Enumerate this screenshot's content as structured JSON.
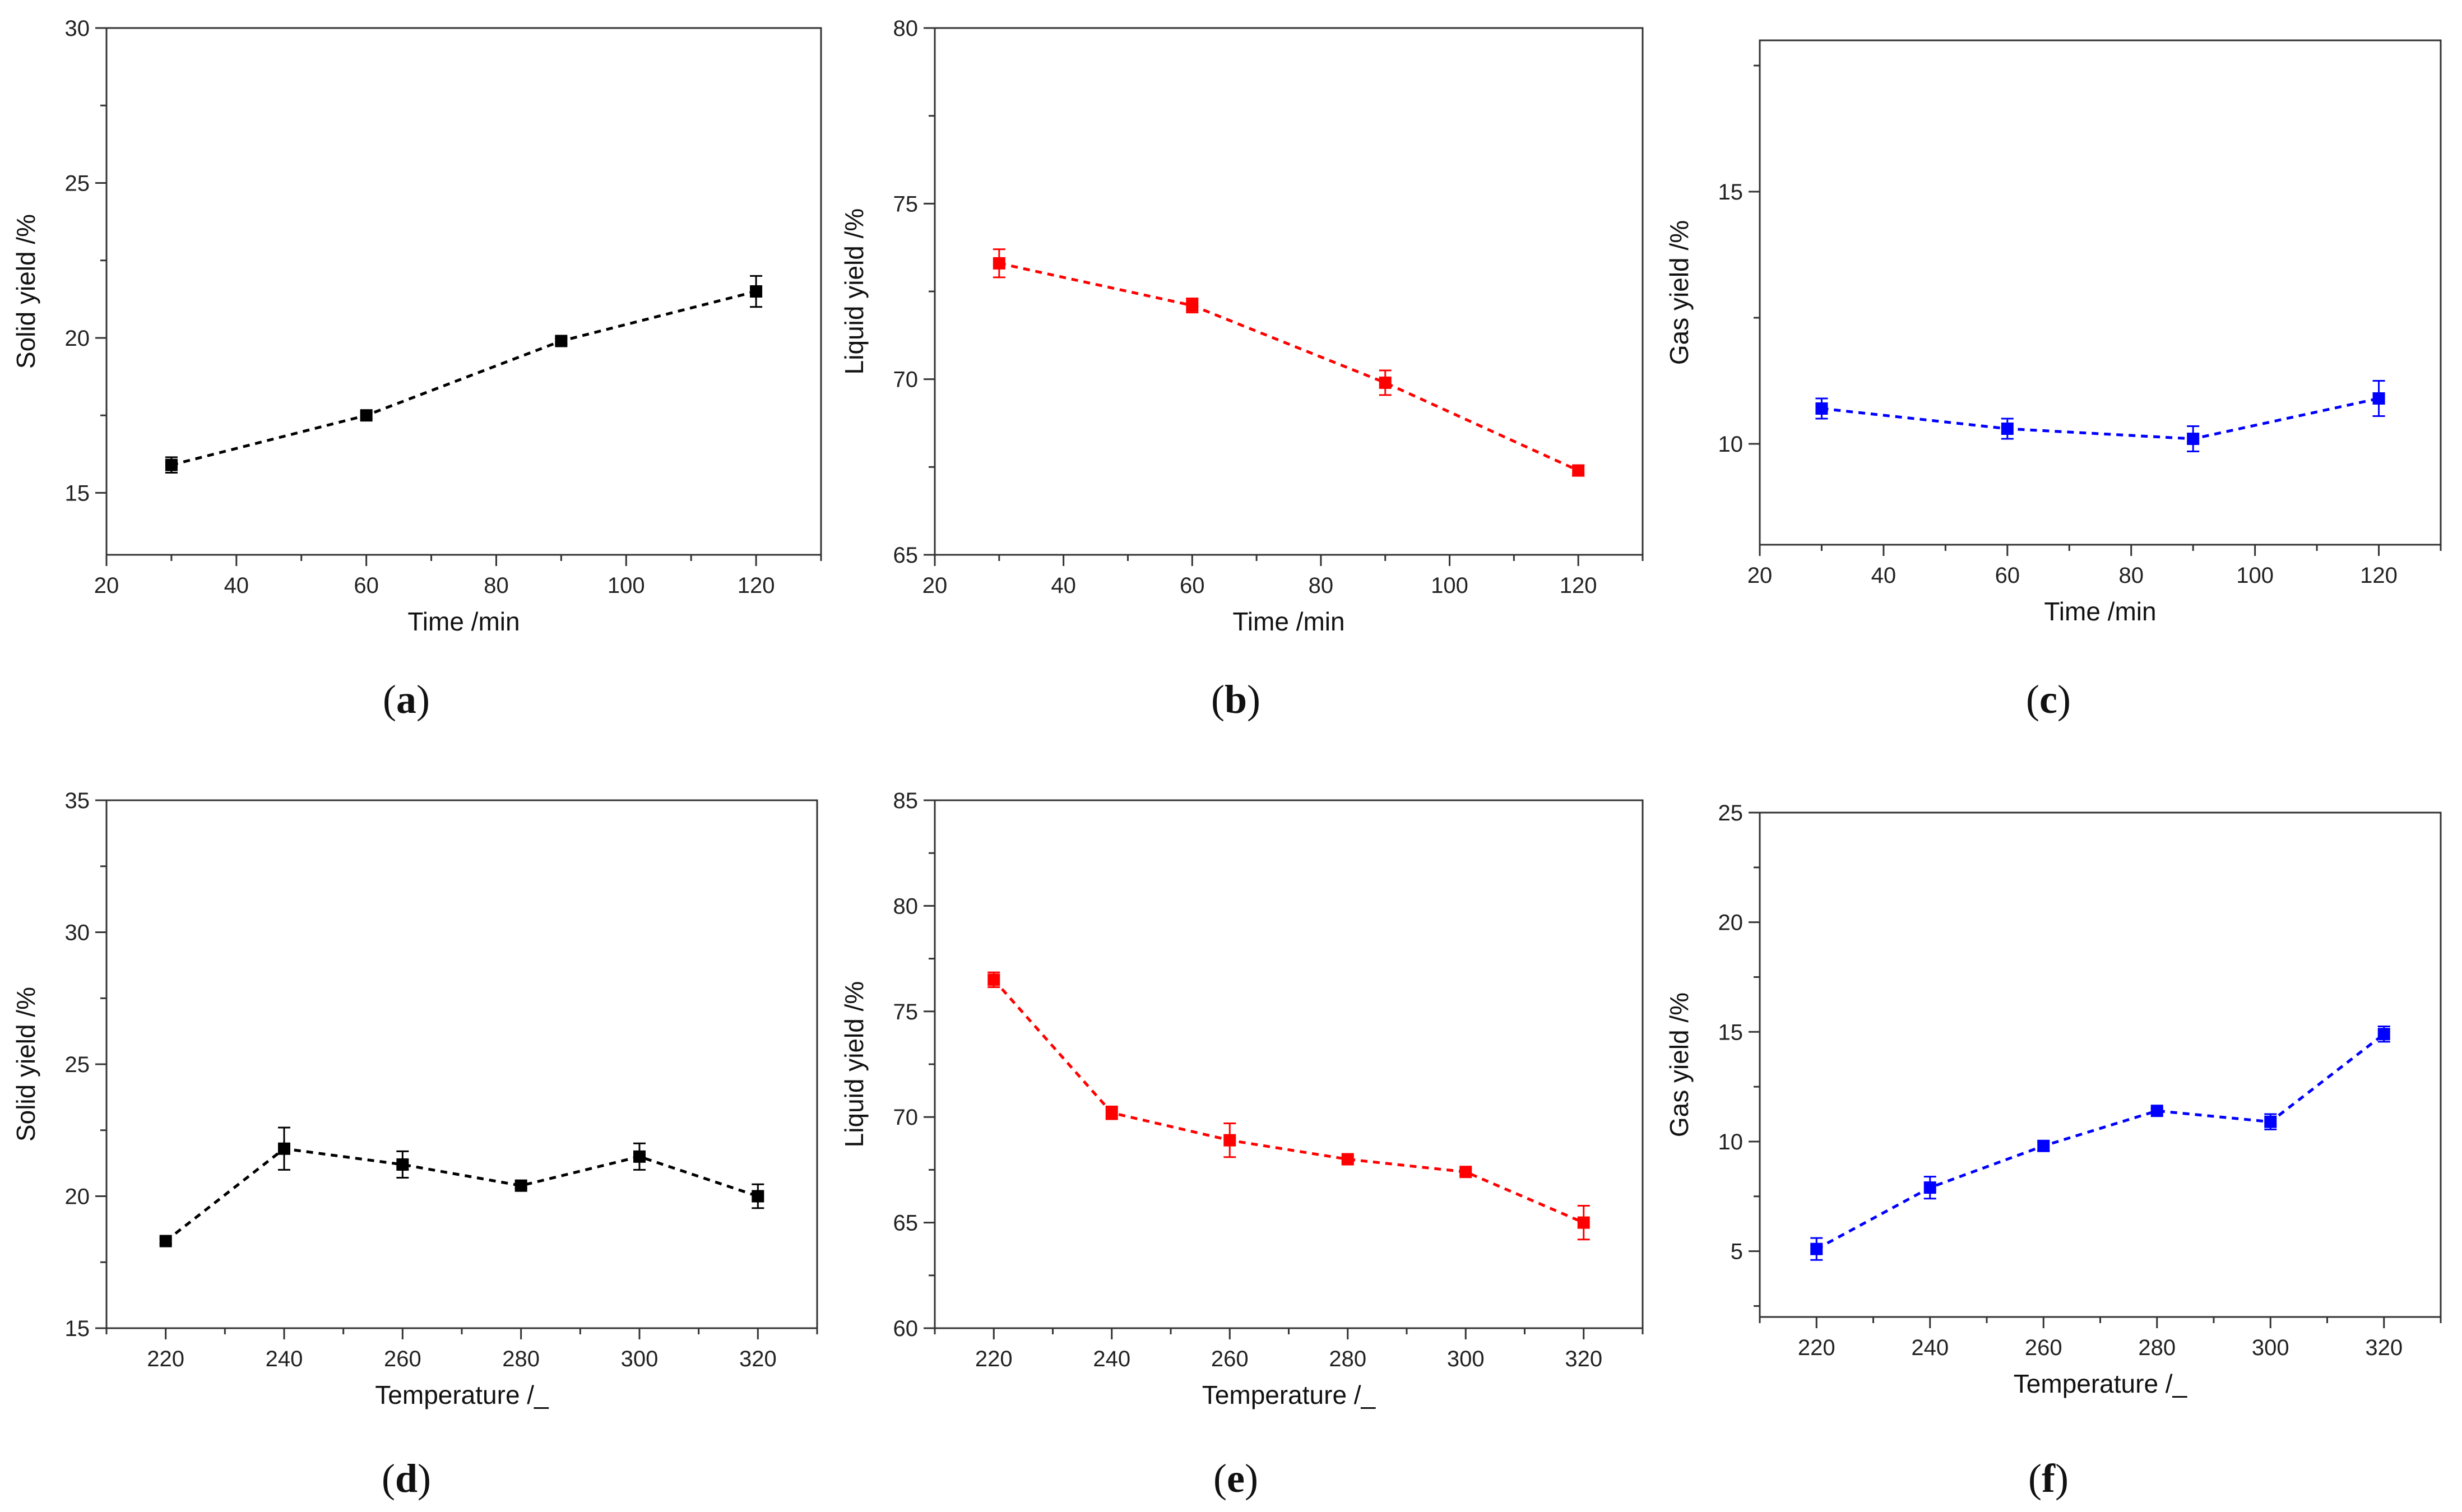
{
  "chart_data": [
    {
      "panel_label": "a",
      "type": "line",
      "xlabel": "Time /min",
      "ylabel": "Solid yield /%",
      "xlim": [
        20,
        130
      ],
      "ylim": [
        13,
        30
      ],
      "x_ticks": [
        "20",
        "40",
        "60",
        "80",
        "100",
        "120"
      ],
      "y_ticks": [
        "15",
        "20",
        "25",
        "30"
      ],
      "color": "#000000",
      "x": [
        30,
        60,
        90,
        120
      ],
      "values": [
        15.9,
        17.5,
        19.9,
        21.5
      ],
      "errors": [
        0.25,
        0.1,
        0.1,
        0.5
      ]
    },
    {
      "panel_label": "b",
      "type": "line",
      "xlabel": "Time /min",
      "ylabel": "Liquid yield /%",
      "xlim": [
        20,
        130
      ],
      "ylim": [
        65,
        80
      ],
      "x_ticks": [
        "20",
        "40",
        "60",
        "80",
        "100",
        "120"
      ],
      "y_ticks": [
        "65",
        "70",
        "75",
        "80"
      ],
      "color": "#ff0000",
      "x": [
        30,
        60,
        90,
        120
      ],
      "values": [
        73.3,
        72.1,
        69.9,
        67.4
      ],
      "errors": [
        0.4,
        0.2,
        0.35,
        0.15
      ]
    },
    {
      "panel_label": "c",
      "type": "line",
      "xlabel": "Time /min",
      "ylabel": "Gas yield /%",
      "xlim": [
        20,
        130
      ],
      "ylim": [
        8,
        18
      ],
      "x_ticks": [
        "20",
        "40",
        "60",
        "80",
        "100",
        "120"
      ],
      "y_ticks": [
        "10",
        "15"
      ],
      "color": "#0000ff",
      "x": [
        30,
        60,
        90,
        120
      ],
      "values": [
        10.7,
        10.3,
        10.1,
        10.9
      ],
      "errors": [
        0.2,
        0.2,
        0.25,
        0.35
      ]
    },
    {
      "panel_label": "d",
      "type": "line",
      "xlabel": "Temperature /_",
      "ylabel": "Solid yield /%",
      "xlim": [
        210,
        330
      ],
      "ylim": [
        15,
        35
      ],
      "x_ticks": [
        "220",
        "240",
        "260",
        "280",
        "300",
        "320"
      ],
      "y_ticks": [
        "15",
        "20",
        "25",
        "30",
        "35"
      ],
      "color": "#000000",
      "x": [
        220,
        240,
        260,
        280,
        300,
        320
      ],
      "values": [
        18.3,
        21.8,
        21.2,
        20.4,
        21.5,
        20.0
      ],
      "errors": [
        0.1,
        0.8,
        0.5,
        0.1,
        0.5,
        0.45
      ]
    },
    {
      "panel_label": "e",
      "type": "line",
      "xlabel": "Temperature /_",
      "ylabel": "Liquid yield /%",
      "xlim": [
        210,
        330
      ],
      "ylim": [
        60,
        85
      ],
      "x_ticks": [
        "220",
        "240",
        "260",
        "280",
        "300",
        "320"
      ],
      "y_ticks": [
        "60",
        "65",
        "70",
        "75",
        "80",
        "85"
      ],
      "color": "#ff0000",
      "x": [
        220,
        240,
        260,
        280,
        300,
        320
      ],
      "values": [
        76.5,
        70.2,
        68.9,
        68.0,
        67.4,
        65.0
      ],
      "errors": [
        0.35,
        0.3,
        0.8,
        0.15,
        0.15,
        0.8
      ]
    },
    {
      "panel_label": "f",
      "type": "line",
      "xlabel": "Temperature /_",
      "ylabel": "Gas yield /%",
      "xlim": [
        210,
        330
      ],
      "ylim": [
        2,
        25
      ],
      "x_ticks": [
        "220",
        "240",
        "260",
        "280",
        "300",
        "320"
      ],
      "y_ticks": [
        "5",
        "10",
        "15",
        "20",
        "25"
      ],
      "color": "#0000ff",
      "x": [
        220,
        240,
        260,
        280,
        300,
        320
      ],
      "values": [
        5.1,
        7.9,
        9.8,
        11.4,
        10.9,
        14.9
      ],
      "errors": [
        0.5,
        0.5,
        0.2,
        0.1,
        0.35,
        0.35
      ]
    }
  ]
}
